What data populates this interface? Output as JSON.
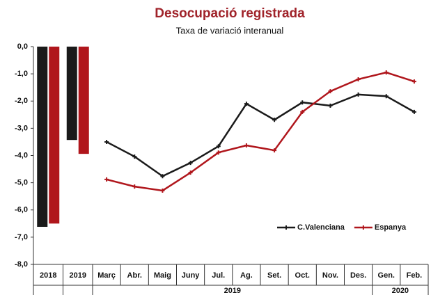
{
  "chart_data": {
    "type": "bar+line",
    "title": "Desocupació registrada",
    "subtitle": "Taxa de variació interanual",
    "categories": [
      "2018",
      "2019",
      "Març",
      "Abr.",
      "Maig",
      "Juny",
      "Jul.",
      "Ag.",
      "Set.",
      "Oct.",
      "Nov.",
      "Des.",
      "Gen.",
      "Feb."
    ],
    "groups": [
      {
        "label": "2019",
        "span": [
          2,
          11
        ]
      },
      {
        "label": "2020",
        "span": [
          12,
          13
        ]
      }
    ],
    "series": [
      {
        "name": "C.Valenciana",
        "color": "#1a1a1a",
        "bar_values": [
          -6.62,
          -3.43,
          null,
          null,
          null,
          null,
          null,
          null,
          null,
          null,
          null,
          null,
          null,
          null
        ],
        "values": [
          null,
          null,
          -3.5,
          -4.04,
          -4.76,
          -4.27,
          -3.66,
          -2.1,
          -2.69,
          -2.05,
          -2.17,
          -1.76,
          -1.82,
          -2.4
        ]
      },
      {
        "name": "Espanya",
        "color": "#b0161c",
        "bar_values": [
          -6.5,
          -3.94,
          null,
          null,
          null,
          null,
          null,
          null,
          null,
          null,
          null,
          null,
          null,
          null
        ],
        "values": [
          null,
          null,
          -4.88,
          -5.14,
          -5.29,
          -4.63,
          -3.89,
          -3.63,
          -3.81,
          -2.4,
          -1.64,
          -1.2,
          -0.95,
          -1.28
        ]
      }
    ],
    "ylim": [
      -8,
      0
    ],
    "yticks": [
      {
        "value": 0,
        "label": "0,0"
      },
      {
        "value": -1,
        "label": "-1,0"
      },
      {
        "value": -2,
        "label": "-2,0"
      },
      {
        "value": -3,
        "label": "-3,0"
      },
      {
        "value": -4,
        "label": "-4,0"
      },
      {
        "value": -5,
        "label": "-5,0"
      },
      {
        "value": -6,
        "label": "-6,0"
      },
      {
        "value": -7,
        "label": "-7,0"
      },
      {
        "value": -8,
        "label": "-8,0"
      }
    ],
    "legend": "bottom-right"
  }
}
